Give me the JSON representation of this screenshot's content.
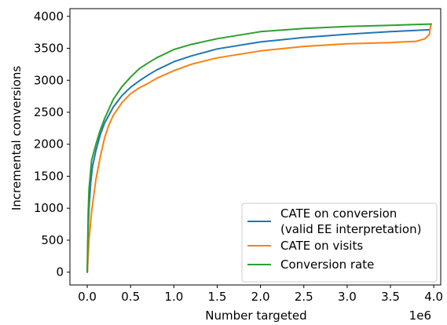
{
  "chart_data": {
    "type": "line",
    "xlabel": "Number targeted",
    "ylabel": "Incremental conversions",
    "x_offset_label": "1e6",
    "x_unit_multiplier": 1000000,
    "xlim": [
      -0.2,
      4.08
    ],
    "ylim": [
      -200,
      4120
    ],
    "x_ticks": [
      0.0,
      0.5,
      1.0,
      1.5,
      2.0,
      2.5,
      3.0,
      3.5,
      4.0
    ],
    "x_tick_labels": [
      "0.0",
      "0.5",
      "1.0",
      "1.5",
      "2.0",
      "2.5",
      "3.0",
      "3.5",
      "4.0"
    ],
    "y_ticks": [
      0,
      500,
      1000,
      1500,
      2000,
      2500,
      3000,
      3500,
      4000
    ],
    "y_tick_labels": [
      "0",
      "500",
      "1000",
      "1500",
      "2000",
      "2500",
      "3000",
      "3500",
      "4000"
    ],
    "grid": false,
    "legend_position": "lower-right",
    "series": [
      {
        "name": "CATE on conversion\n(valid EE interpretation)",
        "color": "#1f77b4",
        "x": [
          0,
          0.01,
          0.02,
          0.04,
          0.06,
          0.1,
          0.15,
          0.2,
          0.3,
          0.4,
          0.5,
          0.6,
          0.7,
          0.8,
          1.0,
          1.2,
          1.5,
          2.0,
          2.5,
          3.0,
          3.5,
          3.95
        ],
        "y": [
          0,
          650,
          1000,
          1400,
          1650,
          1900,
          2150,
          2330,
          2580,
          2760,
          2890,
          2990,
          3080,
          3160,
          3290,
          3380,
          3490,
          3600,
          3670,
          3720,
          3760,
          3790
        ]
      },
      {
        "name": "CATE on visits",
        "color": "#ff7f0e",
        "x": [
          0,
          0.02,
          0.05,
          0.1,
          0.15,
          0.2,
          0.25,
          0.3,
          0.4,
          0.5,
          0.6,
          0.7,
          0.8,
          1.0,
          1.2,
          1.5,
          2.0,
          2.5,
          3.0,
          3.5,
          3.8,
          3.9,
          3.95,
          3.96,
          3.97
        ],
        "y": [
          0,
          500,
          950,
          1450,
          1800,
          2100,
          2300,
          2450,
          2650,
          2790,
          2880,
          2950,
          3030,
          3150,
          3250,
          3350,
          3460,
          3530,
          3570,
          3590,
          3610,
          3650,
          3720,
          3830,
          3880
        ]
      },
      {
        "name": "Conversion rate",
        "color": "#2ca02c",
        "x": [
          0,
          0.01,
          0.02,
          0.05,
          0.1,
          0.15,
          0.2,
          0.3,
          0.4,
          0.5,
          0.6,
          0.7,
          0.8,
          1.0,
          1.2,
          1.5,
          2.0,
          2.5,
          3.0,
          3.5,
          3.97
        ],
        "y": [
          0,
          900,
          1300,
          1750,
          2000,
          2220,
          2400,
          2700,
          2900,
          3050,
          3180,
          3270,
          3350,
          3480,
          3560,
          3650,
          3760,
          3810,
          3840,
          3860,
          3880
        ]
      }
    ]
  }
}
